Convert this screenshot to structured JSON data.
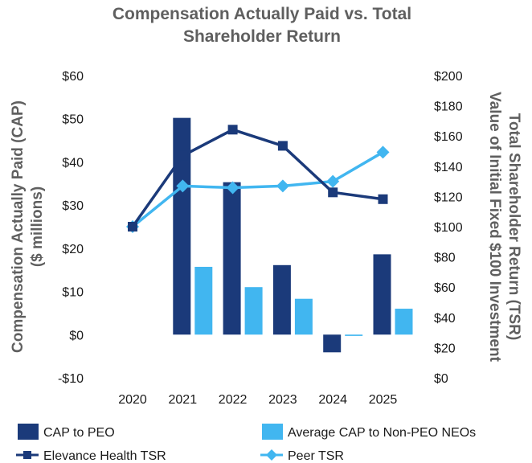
{
  "chart_data": {
    "type": "bar",
    "title_lines": [
      "Compensation Actually Paid vs. Total",
      "Shareholder Return"
    ],
    "categories": [
      "2020",
      "2021",
      "2022",
      "2023",
      "2024",
      "2025"
    ],
    "ylabel_left_lines": [
      "Compensation Actually Paid (CAP)",
      "($ millions)"
    ],
    "ylabel_right_lines": [
      "Total Shareholder Return (TSR)",
      "Value of Initial Fixed $100 Investment"
    ],
    "left_axis": {
      "ylim": [
        -10,
        60
      ],
      "ticks": [
        60,
        50,
        40,
        30,
        20,
        10,
        0,
        -10
      ],
      "tick_labels": [
        "$60",
        "$50",
        "$40",
        "$30",
        "$20",
        "$10",
        "$0",
        "-$10"
      ]
    },
    "right_axis": {
      "ylim": [
        0,
        200
      ],
      "ticks": [
        200,
        180,
        160,
        140,
        120,
        100,
        80,
        60,
        40,
        20,
        0
      ],
      "tick_labels": [
        "$200",
        "$180",
        "$160",
        "$140",
        "$120",
        "$100",
        "$80",
        "$60",
        "$40",
        "$20",
        "$0"
      ]
    },
    "bar_series": [
      {
        "name": "CAP to PEO",
        "color": "#1b3a7a",
        "axis": "left",
        "values": [
          null,
          50.2,
          35.3,
          16.1,
          -4.1,
          18.6
        ]
      },
      {
        "name": "Average CAP to Non-PEO NEOs",
        "color": "#41b6f0",
        "axis": "left",
        "values": [
          null,
          15.7,
          11.0,
          8.3,
          -0.3,
          6.0
        ]
      }
    ],
    "line_series": [
      {
        "name": "Elevance Health TSR",
        "color": "#1b3a7a",
        "marker": "square",
        "axis": "right",
        "values": [
          100,
          146.9,
          164.2,
          153.5,
          122.7,
          118.2
        ]
      },
      {
        "name": "Peer TSR",
        "color": "#41b6f0",
        "marker": "diamond",
        "axis": "right",
        "values": [
          100,
          126.9,
          125.8,
          126.9,
          130.0,
          149.3
        ]
      }
    ],
    "legend": {
      "position": "bottom",
      "items": [
        "CAP to PEO",
        "Average CAP to Non-PEO NEOs",
        "Elevance Health TSR",
        "Peer TSR"
      ]
    },
    "grid": false
  }
}
